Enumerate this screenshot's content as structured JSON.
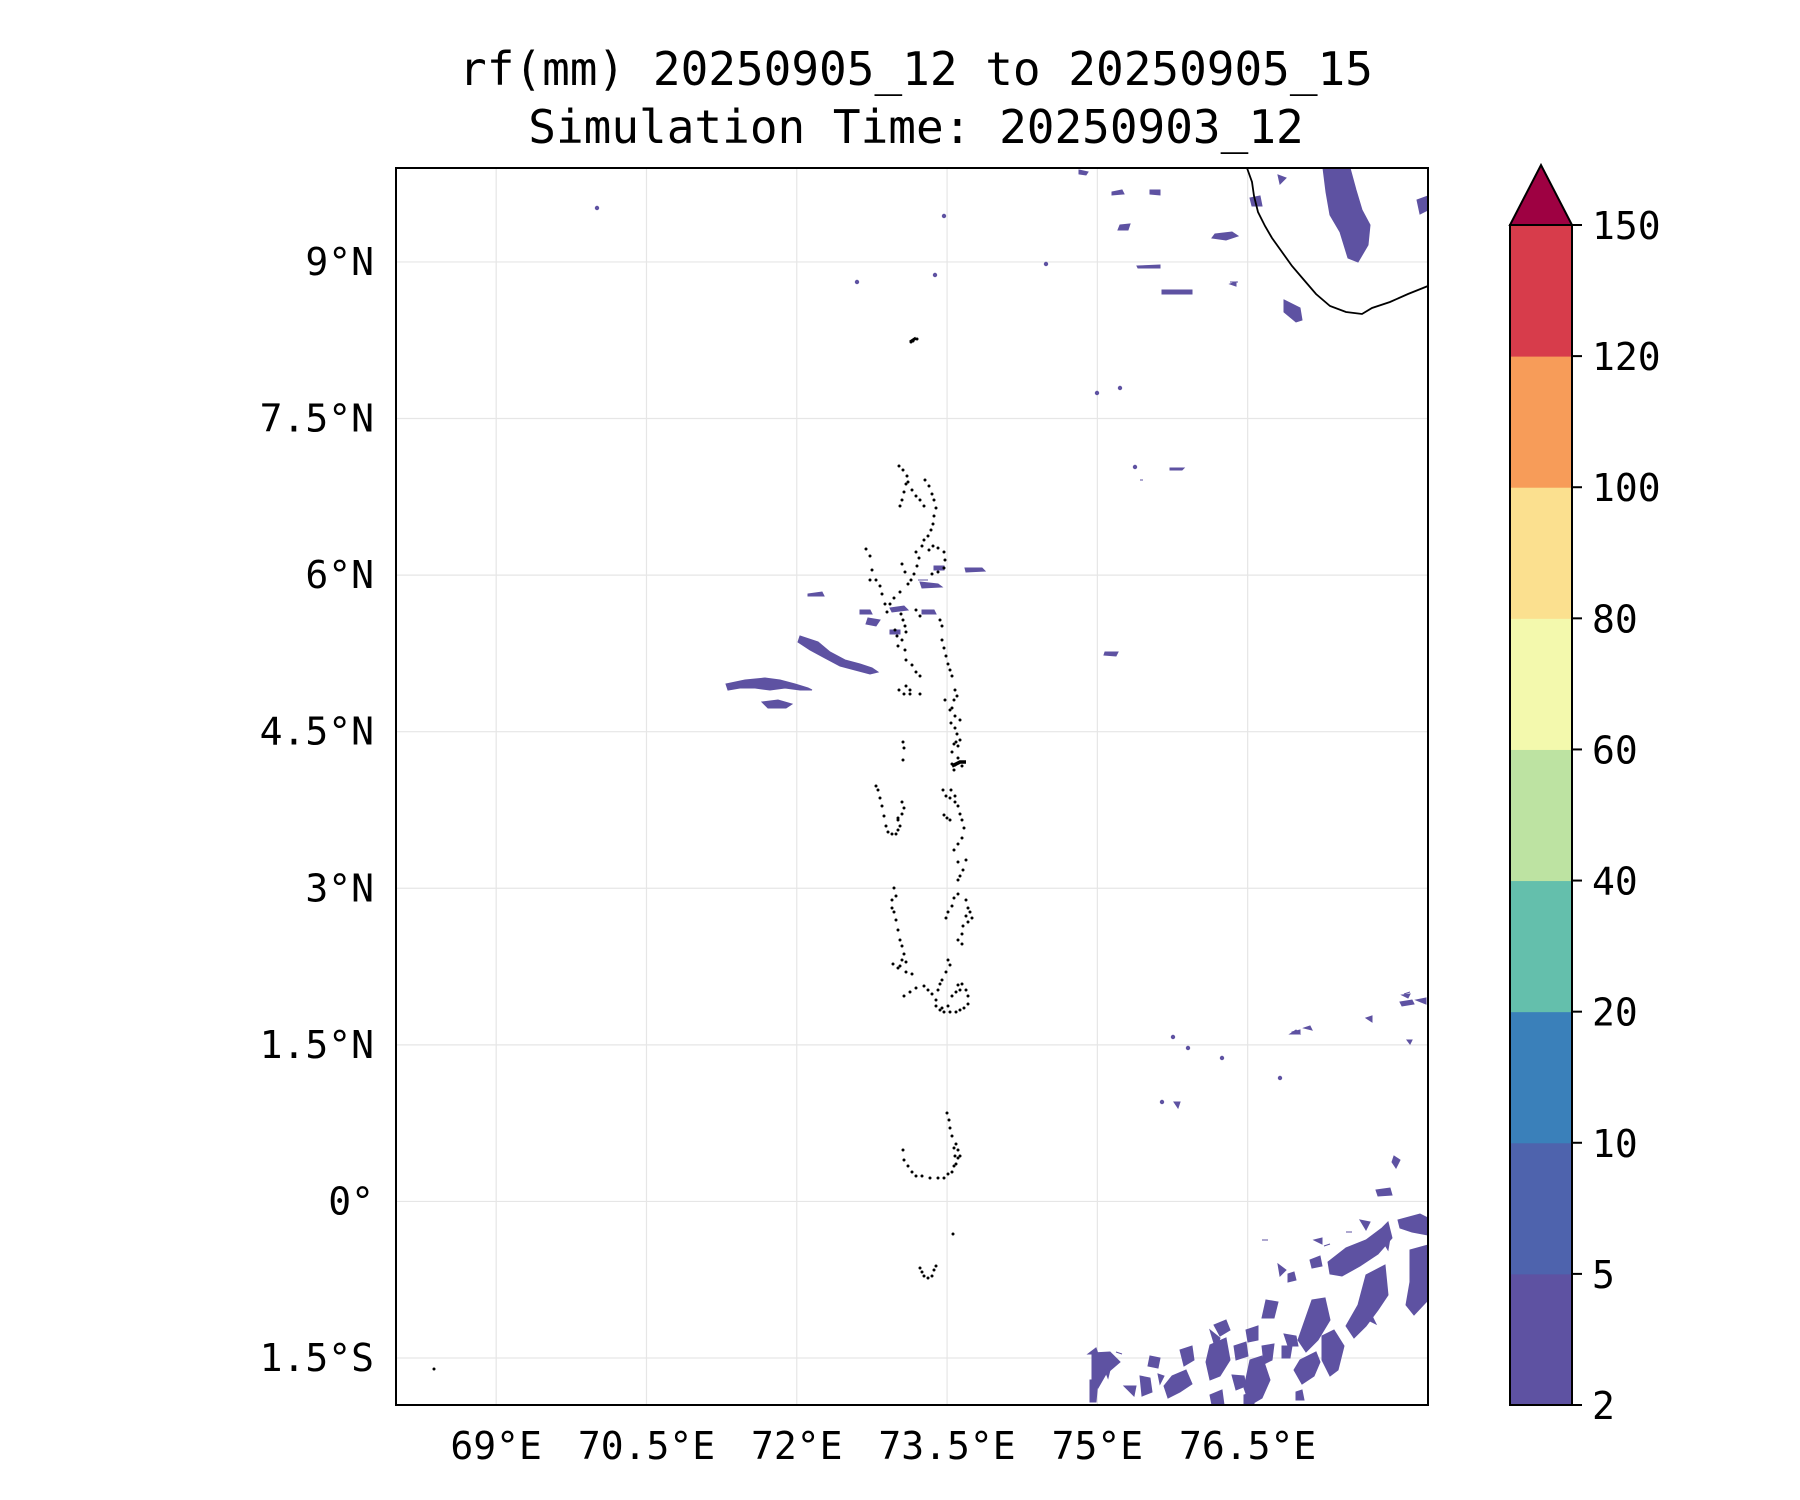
{
  "map": {
    "title_line1": "rf(mm) 20250905_12 to 20250905_15",
    "title_line2": "Simulation Time: 20250903_12",
    "lon_range": [
      68,
      78.3
    ],
    "lat_range": [
      -1.95,
      9.9
    ],
    "lon_ticks": [
      {
        "value": 69,
        "label": "69°E"
      },
      {
        "value": 70.5,
        "label": "70.5°E"
      },
      {
        "value": 72,
        "label": "72°E"
      },
      {
        "value": 73.5,
        "label": "73.5°E"
      },
      {
        "value": 75,
        "label": "75°E"
      },
      {
        "value": 76.5,
        "label": "76.5°E"
      }
    ],
    "lat_ticks": [
      {
        "value": 9,
        "label": "9°N"
      },
      {
        "value": 7.5,
        "label": "7.5°N"
      },
      {
        "value": 6,
        "label": "6°N"
      },
      {
        "value": 4.5,
        "label": "4.5°N"
      },
      {
        "value": 3,
        "label": "3°N"
      },
      {
        "value": 1.5,
        "label": "1.5°N"
      },
      {
        "value": 0,
        "label": "0°"
      },
      {
        "value": -1.5,
        "label": "1.5°S"
      }
    ],
    "grid": true,
    "grid_color": "#e6e6e6",
    "rain_color": "#5e52a2",
    "coast_color": "#000000"
  },
  "colorbar": {
    "levels": [
      "2",
      "5",
      "10",
      "20",
      "40",
      "60",
      "80",
      "100",
      "120",
      "150"
    ],
    "colors": [
      "#5e52a2",
      "#4e63ad",
      "#3a80ba",
      "#64bfac",
      "#bde3a2",
      "#f3f9ad",
      "#fbe08f",
      "#f79c59",
      "#d73c4b"
    ],
    "extend_max_color": "#9e0142"
  }
}
